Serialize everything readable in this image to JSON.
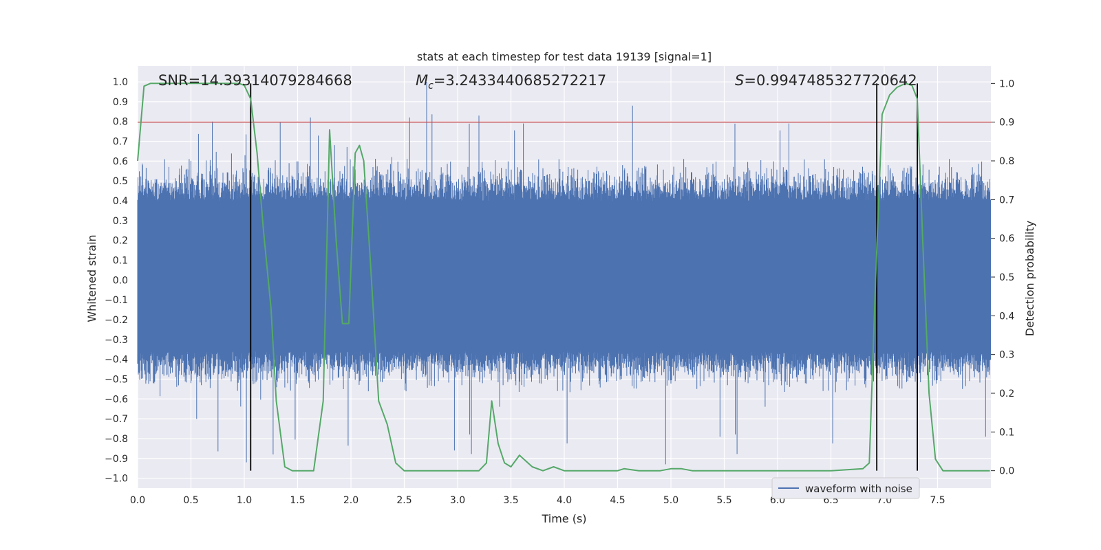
{
  "chart_data": {
    "type": "line",
    "title": "stats at each timestep for test data 19139 [signal=1]",
    "xlabel": "Time (s)",
    "ylabel": "Whitened strain",
    "y2label": "Detection probability",
    "xlim": [
      0.0,
      8.0
    ],
    "ylim": [
      -1.05,
      1.08
    ],
    "y2lim": [
      -0.045,
      1.045
    ],
    "xticks": [
      0.0,
      0.5,
      1.0,
      1.5,
      2.0,
      2.5,
      3.0,
      3.5,
      4.0,
      4.5,
      5.0,
      5.5,
      6.0,
      6.5,
      7.0,
      7.5
    ],
    "xtick_labels": [
      "0.0",
      "0.5",
      "1.0",
      "1.5",
      "2.0",
      "2.5",
      "3.0",
      "3.5",
      "4.0",
      "4.5",
      "5.0",
      "5.5",
      "6.0",
      "6.5",
      "7.0",
      "7.5"
    ],
    "yticks": [
      1.0,
      0.9,
      0.8,
      0.7,
      0.6,
      0.5,
      0.4,
      0.3,
      0.2,
      0.1,
      0.0,
      -0.1,
      -0.2,
      -0.3,
      -0.4,
      -0.5,
      -0.6,
      -0.7,
      -0.8,
      -0.9,
      -1.0
    ],
    "ytick_labels": [
      "1.0",
      "0.9",
      "0.8",
      "0.7",
      "0.6",
      "0.5",
      "0.4",
      "0.3",
      "0.2",
      "0.1",
      "0.0",
      "−0.1",
      "−0.2",
      "−0.3",
      "−0.4",
      "−0.5",
      "−0.6",
      "−0.7",
      "−0.8",
      "−0.9",
      "−1.0"
    ],
    "y2ticks": [
      1.0,
      0.9,
      0.8,
      0.7,
      0.6,
      0.5,
      0.4,
      0.3,
      0.2,
      0.1,
      0.0
    ],
    "y2tick_labels": [
      "1.0",
      "0.9",
      "0.8",
      "0.7",
      "0.6",
      "0.5",
      "0.4",
      "0.3",
      "0.2",
      "0.1",
      "0.0"
    ],
    "annotations": {
      "snr": "SNR=14.39314079284668",
      "mc_prefix": "M",
      "mc_sub": "c",
      "mc_value": "=3.2433440685272217",
      "s_prefix": "S",
      "s_value": "=0.9947485327720642"
    },
    "threshold_line": {
      "axis": "y2",
      "value": 0.9,
      "color": "#c44e52"
    },
    "vertical_lines": [
      1.06,
      6.93,
      7.31
    ],
    "legend": {
      "label": "waveform with noise",
      "placement": "lower-right"
    },
    "series": [
      {
        "name": "waveform with noise",
        "axis": "y",
        "color": "#4c72b0",
        "kind": "noise-band",
        "band_approx": [
          -0.36,
          0.4
        ],
        "peak_approx": 1.0,
        "trough_approx": -0.93
      },
      {
        "name": "detection probability",
        "axis": "y2",
        "color": "#55a868",
        "x": [
          0.0,
          0.06,
          0.12,
          0.2,
          0.4,
          0.6,
          0.8,
          0.95,
          1.0,
          1.06,
          1.12,
          1.18,
          1.25,
          1.3,
          1.38,
          1.45,
          1.55,
          1.65,
          1.74,
          1.8,
          1.86,
          1.92,
          1.98,
          2.04,
          2.08,
          2.12,
          2.18,
          2.26,
          2.34,
          2.42,
          2.5,
          2.6,
          2.8,
          3.0,
          3.2,
          3.27,
          3.32,
          3.38,
          3.44,
          3.5,
          3.58,
          3.62,
          3.7,
          3.8,
          3.9,
          4.0,
          4.1,
          4.3,
          4.5,
          4.56,
          4.7,
          4.8,
          4.9,
          5.0,
          5.1,
          5.2,
          5.3,
          5.5,
          5.8,
          6.0,
          6.2,
          6.5,
          6.8,
          6.86,
          6.92,
          6.98,
          7.05,
          7.12,
          7.2,
          7.26,
          7.31,
          7.36,
          7.42,
          7.48,
          7.55,
          7.6,
          7.7,
          7.8,
          7.9,
          7.99
        ],
        "y": [
          0.8,
          0.993,
          1.0,
          1.0,
          1.0,
          1.0,
          1.0,
          1.0,
          0.995,
          0.96,
          0.82,
          0.62,
          0.42,
          0.18,
          0.01,
          0.0,
          0.0,
          0.0,
          0.18,
          0.88,
          0.6,
          0.38,
          0.38,
          0.82,
          0.84,
          0.8,
          0.55,
          0.18,
          0.12,
          0.02,
          0.0,
          0.0,
          0.0,
          0.0,
          0.0,
          0.02,
          0.18,
          0.07,
          0.02,
          0.01,
          0.04,
          0.03,
          0.01,
          0.0,
          0.01,
          0.0,
          0.0,
          0.0,
          0.0,
          0.005,
          0.0,
          0.0,
          0.0,
          0.005,
          0.005,
          0.0,
          0.0,
          0.0,
          0.0,
          0.0,
          0.0,
          0.0,
          0.005,
          0.02,
          0.5,
          0.92,
          0.97,
          0.99,
          1.0,
          0.995,
          0.96,
          0.6,
          0.2,
          0.03,
          0.0,
          0.0,
          0.0,
          0.0,
          0.0,
          0.0
        ]
      }
    ]
  }
}
